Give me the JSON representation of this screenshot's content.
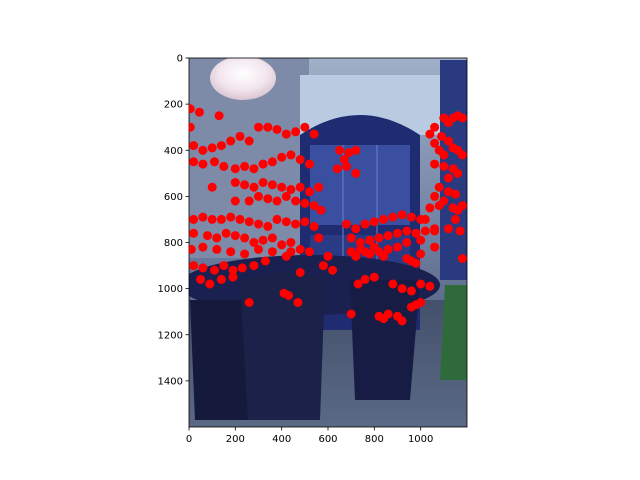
{
  "chart_data": {
    "type": "scatter",
    "title": "",
    "xlabel": "",
    "ylabel": "",
    "xlim": [
      0,
      1200
    ],
    "ylim": [
      1600,
      0
    ],
    "y_inverted": true,
    "grid": false,
    "x_ticks": [
      "0",
      "200",
      "400",
      "600",
      "800",
      "1000"
    ],
    "y_ticks": [
      "0",
      "200",
      "400",
      "600",
      "800",
      "1000",
      "1200",
      "1400"
    ],
    "background": "photo of a dining room with a blue china cabinet, dining table and chairs",
    "marker_color": "#ff0000",
    "series": [
      {
        "points": [
          [
            5,
            220
          ],
          [
            45,
            235
          ],
          [
            5,
            300
          ],
          [
            130,
            250
          ],
          [
            20,
            380
          ],
          [
            60,
            400
          ],
          [
            100,
            390
          ],
          [
            140,
            380
          ],
          [
            180,
            360
          ],
          [
            220,
            340
          ],
          [
            260,
            360
          ],
          [
            300,
            300
          ],
          [
            340,
            300
          ],
          [
            380,
            310
          ],
          [
            420,
            330
          ],
          [
            460,
            320
          ],
          [
            500,
            300
          ],
          [
            540,
            330
          ],
          [
            20,
            450
          ],
          [
            60,
            460
          ],
          [
            110,
            450
          ],
          [
            150,
            470
          ],
          [
            200,
            480
          ],
          [
            240,
            470
          ],
          [
            280,
            480
          ],
          [
            320,
            460
          ],
          [
            360,
            450
          ],
          [
            400,
            430
          ],
          [
            440,
            420
          ],
          [
            480,
            440
          ],
          [
            520,
            460
          ],
          [
            200,
            540
          ],
          [
            240,
            550
          ],
          [
            280,
            560
          ],
          [
            320,
            540
          ],
          [
            360,
            550
          ],
          [
            400,
            560
          ],
          [
            440,
            570
          ],
          [
            480,
            560
          ],
          [
            520,
            580
          ],
          [
            560,
            560
          ],
          [
            100,
            560
          ],
          [
            200,
            620
          ],
          [
            260,
            620
          ],
          [
            300,
            600
          ],
          [
            340,
            610
          ],
          [
            380,
            620
          ],
          [
            420,
            600
          ],
          [
            460,
            620
          ],
          [
            500,
            630
          ],
          [
            540,
            640
          ],
          [
            570,
            660
          ],
          [
            20,
            700
          ],
          [
            60,
            690
          ],
          [
            100,
            700
          ],
          [
            140,
            700
          ],
          [
            180,
            690
          ],
          [
            220,
            700
          ],
          [
            260,
            710
          ],
          [
            300,
            720
          ],
          [
            340,
            730
          ],
          [
            380,
            700
          ],
          [
            420,
            710
          ],
          [
            460,
            720
          ],
          [
            500,
            710
          ],
          [
            540,
            730
          ],
          [
            20,
            760
          ],
          [
            80,
            770
          ],
          [
            120,
            780
          ],
          [
            160,
            760
          ],
          [
            200,
            770
          ],
          [
            240,
            780
          ],
          [
            280,
            800
          ],
          [
            320,
            790
          ],
          [
            360,
            780
          ],
          [
            400,
            810
          ],
          [
            440,
            800
          ],
          [
            480,
            830
          ],
          [
            520,
            840
          ],
          [
            10,
            830
          ],
          [
            60,
            820
          ],
          [
            120,
            830
          ],
          [
            180,
            840
          ],
          [
            240,
            850
          ],
          [
            300,
            830
          ],
          [
            360,
            840
          ],
          [
            420,
            860
          ],
          [
            20,
            900
          ],
          [
            60,
            910
          ],
          [
            110,
            920
          ],
          [
            150,
            900
          ],
          [
            190,
            920
          ],
          [
            230,
            910
          ],
          [
            280,
            900
          ],
          [
            330,
            880
          ],
          [
            480,
            930
          ],
          [
            440,
            840
          ],
          [
            50,
            960
          ],
          [
            90,
            980
          ],
          [
            140,
            960
          ],
          [
            190,
            950
          ],
          [
            260,
            1060
          ],
          [
            410,
            1020
          ],
          [
            430,
            1030
          ],
          [
            470,
            1060
          ],
          [
            650,
            400
          ],
          [
            690,
            410
          ],
          [
            720,
            400
          ],
          [
            640,
            480
          ],
          [
            680,
            470
          ],
          [
            720,
            500
          ],
          [
            670,
            440
          ],
          [
            680,
            720
          ],
          [
            720,
            740
          ],
          [
            760,
            720
          ],
          [
            800,
            710
          ],
          [
            840,
            700
          ],
          [
            880,
            690
          ],
          [
            920,
            680
          ],
          [
            960,
            690
          ],
          [
            1000,
            700
          ],
          [
            700,
            780
          ],
          [
            740,
            800
          ],
          [
            780,
            790
          ],
          [
            820,
            780
          ],
          [
            860,
            770
          ],
          [
            900,
            760
          ],
          [
            940,
            750
          ],
          [
            980,
            760
          ],
          [
            1020,
            750
          ],
          [
            1060,
            740
          ],
          [
            700,
            840
          ],
          [
            740,
            830
          ],
          [
            780,
            850
          ],
          [
            820,
            840
          ],
          [
            860,
            830
          ],
          [
            900,
            820
          ],
          [
            940,
            800
          ],
          [
            1000,
            790
          ],
          [
            1060,
            750
          ],
          [
            560,
            780
          ],
          [
            600,
            860
          ],
          [
            580,
            900
          ],
          [
            620,
            920
          ],
          [
            720,
            860
          ],
          [
            760,
            840
          ],
          [
            800,
            820
          ],
          [
            840,
            860
          ],
          [
            760,
            960
          ],
          [
            800,
            950
          ],
          [
            820,
            1120
          ],
          [
            840,
            1130
          ],
          [
            860,
            1110
          ],
          [
            900,
            1120
          ],
          [
            920,
            1140
          ],
          [
            960,
            1080
          ],
          [
            980,
            1070
          ],
          [
            1000,
            1060
          ],
          [
            700,
            1110
          ],
          [
            730,
            980
          ],
          [
            880,
            980
          ],
          [
            920,
            1000
          ],
          [
            960,
            1010
          ],
          [
            1000,
            980
          ],
          [
            1040,
            990
          ],
          [
            940,
            870
          ],
          [
            960,
            880
          ],
          [
            980,
            890
          ],
          [
            1000,
            850
          ],
          [
            1080,
            640
          ],
          [
            1100,
            620
          ],
          [
            1140,
            650
          ],
          [
            1160,
            660
          ],
          [
            1180,
            640
          ],
          [
            1150,
            700
          ],
          [
            1170,
            750
          ],
          [
            1180,
            870
          ],
          [
            1100,
            260
          ],
          [
            1120,
            280
          ],
          [
            1140,
            260
          ],
          [
            1160,
            250
          ],
          [
            1180,
            260
          ],
          [
            1090,
            340
          ],
          [
            1120,
            360
          ],
          [
            1060,
            370
          ],
          [
            1040,
            330
          ],
          [
            1060,
            300
          ],
          [
            1080,
            400
          ],
          [
            1100,
            420
          ],
          [
            1140,
            390
          ],
          [
            1160,
            400
          ],
          [
            1180,
            420
          ],
          [
            1060,
            460
          ],
          [
            1100,
            470
          ],
          [
            1140,
            480
          ],
          [
            1120,
            520
          ],
          [
            1160,
            500
          ],
          [
            1080,
            560
          ],
          [
            1120,
            580
          ],
          [
            1150,
            590
          ],
          [
            1060,
            600
          ],
          [
            1040,
            650
          ],
          [
            1020,
            700
          ],
          [
            1120,
            740
          ],
          [
            1060,
            820
          ]
        ]
      }
    ]
  }
}
